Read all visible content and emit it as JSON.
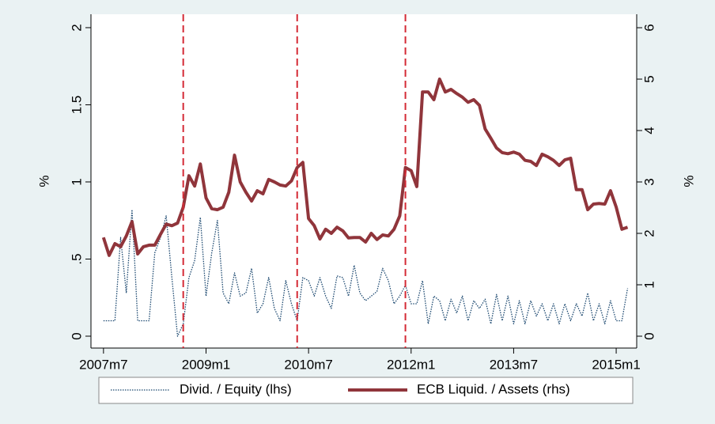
{
  "chart_data": {
    "type": "line",
    "y_label": "%",
    "y2_label": "%",
    "x": [
      570,
      571,
      572,
      573,
      574,
      575,
      576,
      577,
      578,
      579,
      580,
      581,
      582,
      583,
      584,
      585,
      586,
      587,
      588,
      589,
      590,
      591,
      592,
      593,
      594,
      595,
      596,
      597,
      598,
      599,
      600,
      601,
      602,
      603,
      604,
      605,
      606,
      607,
      608,
      609,
      610,
      611,
      612,
      613,
      614,
      615,
      616,
      617,
      618,
      619,
      620,
      621,
      622,
      623,
      624,
      625,
      626,
      627,
      628,
      629,
      630,
      631,
      632,
      633,
      634,
      635,
      636,
      637,
      638,
      639,
      640,
      641,
      642,
      643,
      644,
      645,
      646,
      647,
      648,
      649,
      650,
      651,
      652,
      653,
      654,
      655,
      656,
      657,
      658,
      659,
      660,
      661,
      662
    ],
    "xlim": [
      567.8,
      663.6
    ],
    "xticks": [
      {
        "value": 570,
        "label": "2007m7"
      },
      {
        "value": 588,
        "label": "2009m1"
      },
      {
        "value": 606,
        "label": "2010m7"
      },
      {
        "value": 624,
        "label": "2012m1"
      },
      {
        "value": 642,
        "label": "2013m7"
      },
      {
        "value": 660,
        "label": "2015m1"
      }
    ],
    "ylim": [
      -0.077,
      2.087
    ],
    "yticks": [
      0,
      {
        "value": 0.5,
        "label": ".5"
      },
      1,
      1.5,
      2
    ],
    "y2lim": [
      -0.231,
      6.262
    ],
    "y2ticks": [
      0,
      1,
      2,
      3,
      4,
      5,
      6
    ],
    "vlines": {
      "x": [
        584,
        604,
        623
      ],
      "color": "#d42a35"
    },
    "legend": "bottom",
    "series": [
      {
        "name": "Divid. / Equity (lhs)",
        "color": "#1a476f",
        "style": "dotted",
        "values": [
          0.1,
          0.1,
          0.1,
          0.64,
          0.28,
          0.82,
          0.1,
          0.1,
          0.1,
          0.54,
          0.64,
          0.78,
          0.38,
          0.0,
          0.08,
          0.38,
          0.49,
          0.77,
          0.26,
          0.54,
          0.75,
          0.28,
          0.21,
          0.41,
          0.26,
          0.28,
          0.44,
          0.15,
          0.21,
          0.38,
          0.18,
          0.1,
          0.36,
          0.21,
          0.1,
          0.38,
          0.36,
          0.26,
          0.38,
          0.26,
          0.18,
          0.39,
          0.38,
          0.26,
          0.46,
          0.28,
          0.23,
          0.26,
          0.29,
          0.44,
          0.36,
          0.21,
          0.26,
          0.33,
          0.21,
          0.21,
          0.36,
          0.08,
          0.26,
          0.23,
          0.1,
          0.24,
          0.15,
          0.26,
          0.1,
          0.23,
          0.18,
          0.24,
          0.08,
          0.27,
          0.1,
          0.26,
          0.08,
          0.23,
          0.08,
          0.23,
          0.13,
          0.21,
          0.1,
          0.21,
          0.08,
          0.21,
          0.1,
          0.21,
          0.13,
          0.28,
          0.1,
          0.21,
          0.08,
          0.23,
          0.1,
          0.1,
          0.31
        ]
      },
      {
        "name": "ECB Liquid. / Assets (rhs)",
        "color": "#90353b",
        "style": "solid",
        "axis": "y2",
        "values": [
          1.92,
          1.57,
          1.8,
          1.74,
          1.95,
          2.23,
          1.6,
          1.74,
          1.77,
          1.77,
          1.98,
          2.18,
          2.15,
          2.2,
          2.51,
          3.12,
          2.92,
          3.35,
          2.69,
          2.48,
          2.46,
          2.51,
          2.8,
          3.52,
          3.0,
          2.8,
          2.63,
          2.83,
          2.77,
          3.05,
          3.0,
          2.94,
          2.92,
          3.02,
          3.28,
          3.38,
          2.29,
          2.15,
          1.89,
          2.08,
          2.0,
          2.12,
          2.05,
          1.91,
          1.92,
          1.92,
          1.83,
          2.0,
          1.88,
          1.97,
          1.95,
          2.08,
          2.34,
          3.28,
          3.22,
          2.91,
          4.75,
          4.75,
          4.6,
          5.0,
          4.75,
          4.8,
          4.72,
          4.65,
          4.55,
          4.6,
          4.49,
          4.03,
          3.85,
          3.66,
          3.57,
          3.55,
          3.58,
          3.54,
          3.42,
          3.4,
          3.32,
          3.54,
          3.49,
          3.42,
          3.32,
          3.43,
          3.46,
          2.85,
          2.85,
          2.46,
          2.57,
          2.58,
          2.57,
          2.83,
          2.51,
          2.08,
          2.12
        ]
      }
    ]
  }
}
